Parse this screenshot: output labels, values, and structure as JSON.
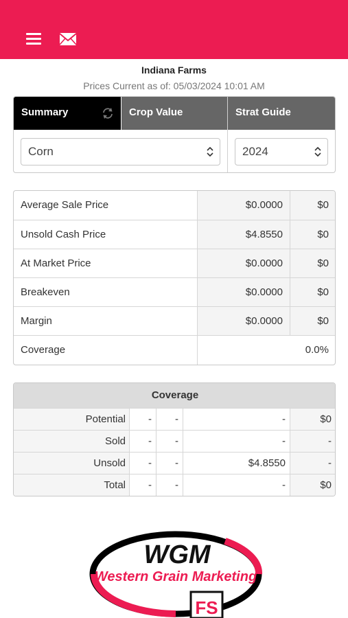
{
  "nav": {
    "menu_icon": "hamburger-menu-icon",
    "mail_icon": "mail-icon"
  },
  "header": {
    "title": "Indiana Farms",
    "prices_current": "Prices Current as of: 05/03/2024 10:01 AM"
  },
  "tabs": [
    {
      "label": "Summary",
      "active": true
    },
    {
      "label": "Crop Value",
      "active": false
    },
    {
      "label": "Strat Guide",
      "active": false
    }
  ],
  "selects": {
    "crop": "Corn",
    "year": "2024"
  },
  "metrics": [
    {
      "label": "Average Sale Price",
      "price": "$0.0000",
      "total": "$0"
    },
    {
      "label": "Unsold Cash Price",
      "price": "$4.8550",
      "total": "$0"
    },
    {
      "label": "At Market Price",
      "price": "$0.0000",
      "total": "$0"
    },
    {
      "label": "Breakeven",
      "price": "$0.0000",
      "total": "$0"
    },
    {
      "label": "Margin",
      "price": "$0.0000",
      "total": "$0"
    },
    {
      "label": "Coverage",
      "value": "0.0%"
    }
  ],
  "coverage": {
    "title": "Coverage",
    "rows": [
      {
        "label": "Potential",
        "c1": "-",
        "c2": "-",
        "c3": "-",
        "c4": "$0"
      },
      {
        "label": "Sold",
        "c1": "-",
        "c2": "-",
        "c3": "-",
        "c4": "-"
      },
      {
        "label": "Unsold",
        "c1": "-",
        "c2": "-",
        "c3": "$4.8550",
        "c4": "-"
      },
      {
        "label": "Total",
        "c1": "-",
        "c2": "-",
        "c3": "-",
        "c4": "$0"
      }
    ]
  },
  "logo": {
    "big": "WGM",
    "name": "Western Grain Marketing",
    "badge": "FS"
  },
  "colors": {
    "brand": "#ec1c52",
    "tab_active": "#000000",
    "tab_inactive": "#666666"
  }
}
